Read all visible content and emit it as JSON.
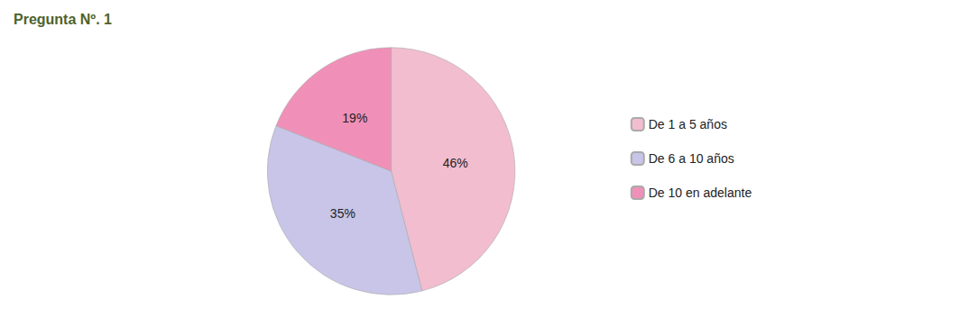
{
  "chart_data": {
    "type": "pie",
    "title": "Pregunta Nº. 1",
    "categories": [
      "De 1 a 5 años",
      "De 6 a 10 años",
      "De 10 en adelante"
    ],
    "values": [
      46,
      35,
      19
    ],
    "value_labels": [
      "46%",
      "35%",
      "19%"
    ],
    "colors": [
      "#F2BDCF",
      "#C8C5E8",
      "#F090B8"
    ],
    "data_labels": true,
    "legend": "right"
  }
}
